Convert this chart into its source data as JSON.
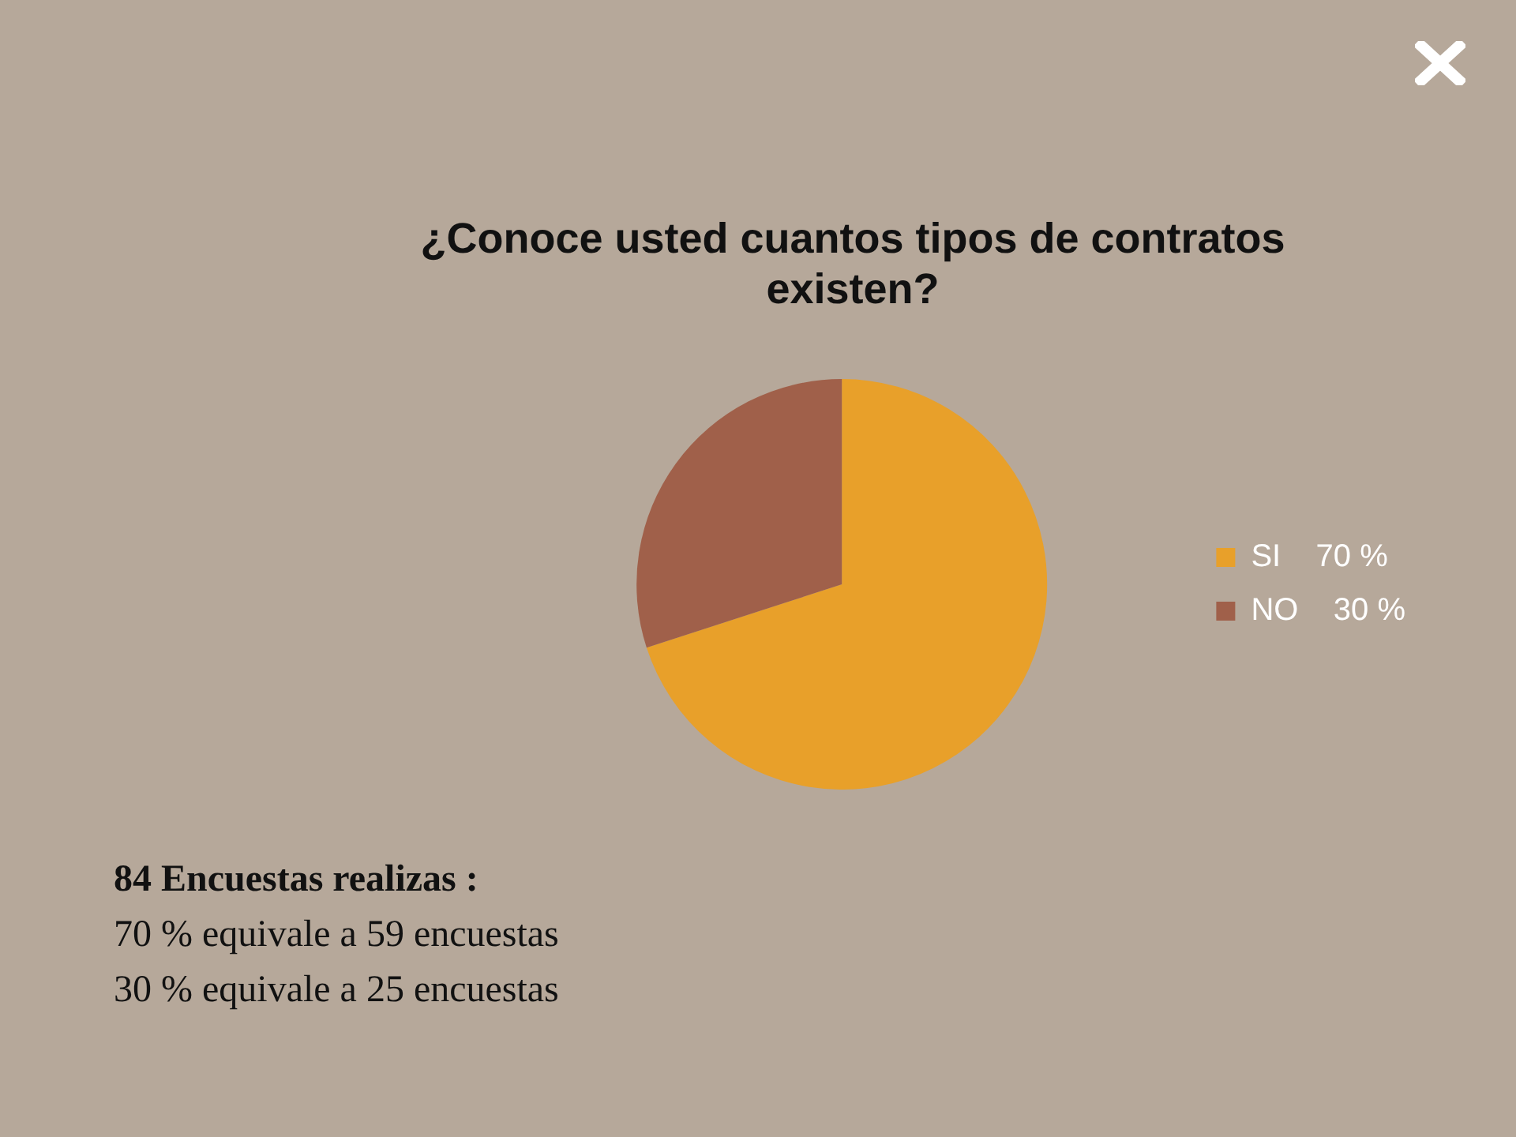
{
  "chart_data": {
    "type": "pie",
    "title": "¿Conoce usted cuantos tipos de contratos existen?",
    "categories": [
      "SI",
      "NO"
    ],
    "values": [
      70,
      30
    ],
    "value_labels": [
      "70 %",
      "30 %"
    ],
    "colors": [
      "#e8a02a",
      "#a0604a"
    ],
    "legend": "right",
    "annotations": [
      "84 Encuestas realizas :",
      "70 % equivale a 59 encuestas",
      "30 % equivale a 25 encuestas"
    ]
  }
}
